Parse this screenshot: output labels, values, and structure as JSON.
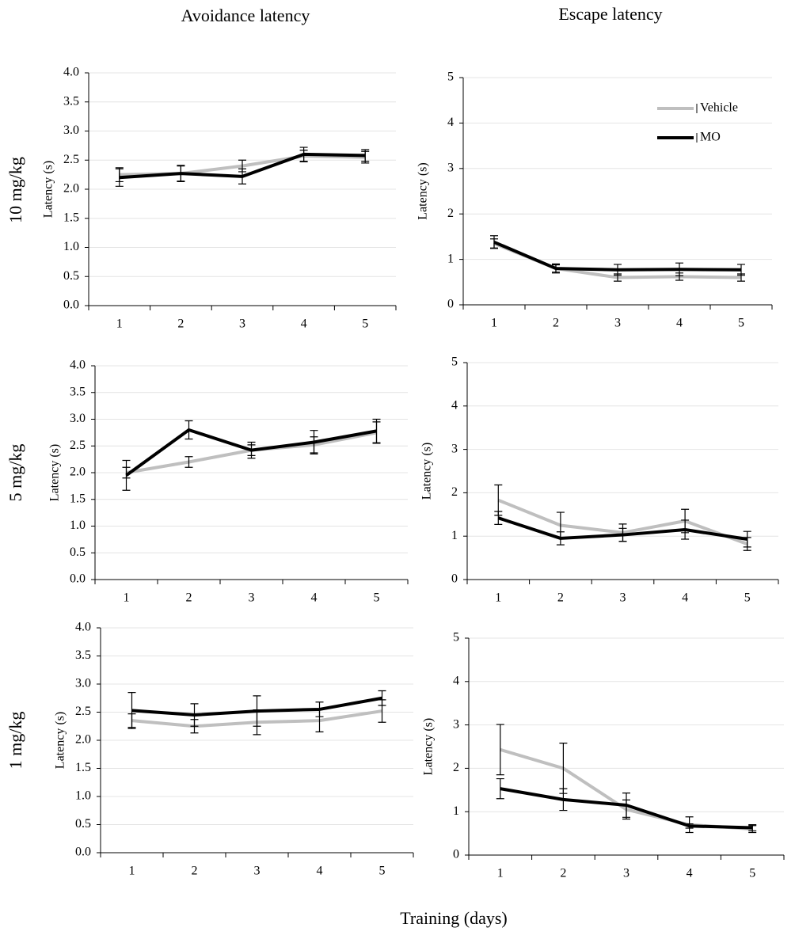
{
  "column_titles": [
    "Avoidance latency",
    "Escape latency"
  ],
  "row_labels": [
    "10 mg/kg",
    "5 mg/kg",
    "1 mg/kg"
  ],
  "xlabel": "Training (days)",
  "chart_data": [
    {
      "type": "line",
      "ylabel": "Latency (s)",
      "categories": [
        "1",
        "2",
        "3",
        "4",
        "5"
      ],
      "ylim": [
        0,
        4
      ],
      "yticks": [
        {
          "value": 0,
          "label": "0.0"
        },
        0.5,
        {
          "value": 1,
          "label": "1.0"
        },
        1.5,
        {
          "value": 2,
          "label": "2.0"
        },
        2.5,
        {
          "value": 3,
          "label": "3.0"
        },
        3.5,
        {
          "value": 4,
          "label": "4.0"
        }
      ],
      "grid": true,
      "series": [
        {
          "name": "Vehicle",
          "color": "#bfbfbf",
          "values": [
            2.25,
            2.27,
            2.4,
            2.57,
            2.55
          ],
          "errors": [
            0.12,
            0.13,
            0.1,
            0.1,
            0.1
          ]
        },
        {
          "name": "MO",
          "color": "#000000",
          "values": [
            2.2,
            2.27,
            2.22,
            2.6,
            2.58
          ],
          "errors": [
            0.15,
            0.14,
            0.13,
            0.12,
            0.1
          ]
        }
      ]
    },
    {
      "type": "line",
      "ylabel": "Latency (s)",
      "categories": [
        "1",
        "2",
        "3",
        "4",
        "5"
      ],
      "ylim": [
        0,
        5
      ],
      "yticks": [
        0,
        1,
        2,
        3,
        4,
        5
      ],
      "grid": true,
      "legend": "upper right",
      "series": [
        {
          "name": "Vehicle",
          "color": "#bfbfbf",
          "values": [
            1.35,
            0.8,
            0.6,
            0.62,
            0.6
          ],
          "errors": [
            0.1,
            0.08,
            0.08,
            0.08,
            0.08
          ]
        },
        {
          "name": "MO",
          "color": "#000000",
          "values": [
            1.38,
            0.8,
            0.77,
            0.78,
            0.77
          ],
          "errors": [
            0.14,
            0.1,
            0.12,
            0.14,
            0.12
          ]
        }
      ]
    },
    {
      "type": "line",
      "ylabel": "Latency (s)",
      "categories": [
        "1",
        "2",
        "3",
        "4",
        "5"
      ],
      "ylim": [
        0,
        4
      ],
      "yticks": [
        {
          "value": 0,
          "label": "0.0"
        },
        0.5,
        {
          "value": 1,
          "label": "1.0"
        },
        1.5,
        {
          "value": 2,
          "label": "2.0"
        },
        2.5,
        {
          "value": 3,
          "label": "3.0"
        },
        3.5,
        {
          "value": 4,
          "label": "4.0"
        }
      ],
      "grid": true,
      "series": [
        {
          "name": "Vehicle",
          "color": "#bfbfbf",
          "values": [
            2.0,
            2.2,
            2.42,
            2.52,
            2.75
          ],
          "errors": [
            0.1,
            0.1,
            0.1,
            0.15,
            0.2
          ]
        },
        {
          "name": "MO",
          "color": "#000000",
          "values": [
            1.95,
            2.8,
            2.42,
            2.57,
            2.78
          ],
          "errors": [
            0.28,
            0.17,
            0.15,
            0.22,
            0.22
          ]
        }
      ]
    },
    {
      "type": "line",
      "ylabel": "Latency (s)",
      "categories": [
        "1",
        "2",
        "3",
        "4",
        "5"
      ],
      "ylim": [
        0,
        5
      ],
      "yticks": [
        0,
        1,
        2,
        3,
        4,
        5
      ],
      "grid": true,
      "series": [
        {
          "name": "Vehicle",
          "color": "#bfbfbf",
          "values": [
            1.83,
            1.25,
            1.08,
            1.35,
            0.82
          ],
          "errors": [
            0.35,
            0.3,
            0.2,
            0.27,
            0.15
          ]
        },
        {
          "name": "MO",
          "color": "#000000",
          "values": [
            1.42,
            0.95,
            1.03,
            1.15,
            0.93
          ],
          "errors": [
            0.15,
            0.15,
            0.15,
            0.22,
            0.18
          ]
        }
      ]
    },
    {
      "type": "line",
      "ylabel": "Latency (s)",
      "categories": [
        "1",
        "2",
        "3",
        "4",
        "5"
      ],
      "ylim": [
        0,
        4
      ],
      "yticks": [
        {
          "value": 0,
          "label": "0.0"
        },
        0.5,
        {
          "value": 1,
          "label": "1.0"
        },
        1.5,
        {
          "value": 2,
          "label": "2.0"
        },
        2.5,
        {
          "value": 3,
          "label": "3.0"
        },
        3.5,
        {
          "value": 4,
          "label": "4.0"
        }
      ],
      "grid": true,
      "series": [
        {
          "name": "Vehicle",
          "color": "#bfbfbf",
          "values": [
            2.35,
            2.25,
            2.32,
            2.35,
            2.52
          ],
          "errors": [
            0.12,
            0.12,
            0.22,
            0.2,
            0.2
          ]
        },
        {
          "name": "MO",
          "color": "#000000",
          "values": [
            2.53,
            2.45,
            2.52,
            2.55,
            2.75
          ],
          "errors": [
            0.32,
            0.2,
            0.27,
            0.13,
            0.13
          ]
        }
      ]
    },
    {
      "type": "line",
      "ylabel": "Latency (s)",
      "categories": [
        "1",
        "2",
        "3",
        "4",
        "5"
      ],
      "ylim": [
        0,
        5
      ],
      "yticks": [
        0,
        1,
        2,
        3,
        4,
        5
      ],
      "grid": true,
      "series": [
        {
          "name": "Vehicle",
          "color": "#bfbfbf",
          "values": [
            2.43,
            2.0,
            1.05,
            0.7,
            0.6
          ],
          "errors": [
            0.58,
            0.58,
            0.22,
            0.18,
            0.08
          ]
        },
        {
          "name": "MO",
          "color": "#000000",
          "values": [
            1.53,
            1.28,
            1.15,
            0.67,
            0.63
          ],
          "errors": [
            0.23,
            0.25,
            0.28,
            0.05,
            0.07
          ]
        }
      ]
    }
  ]
}
